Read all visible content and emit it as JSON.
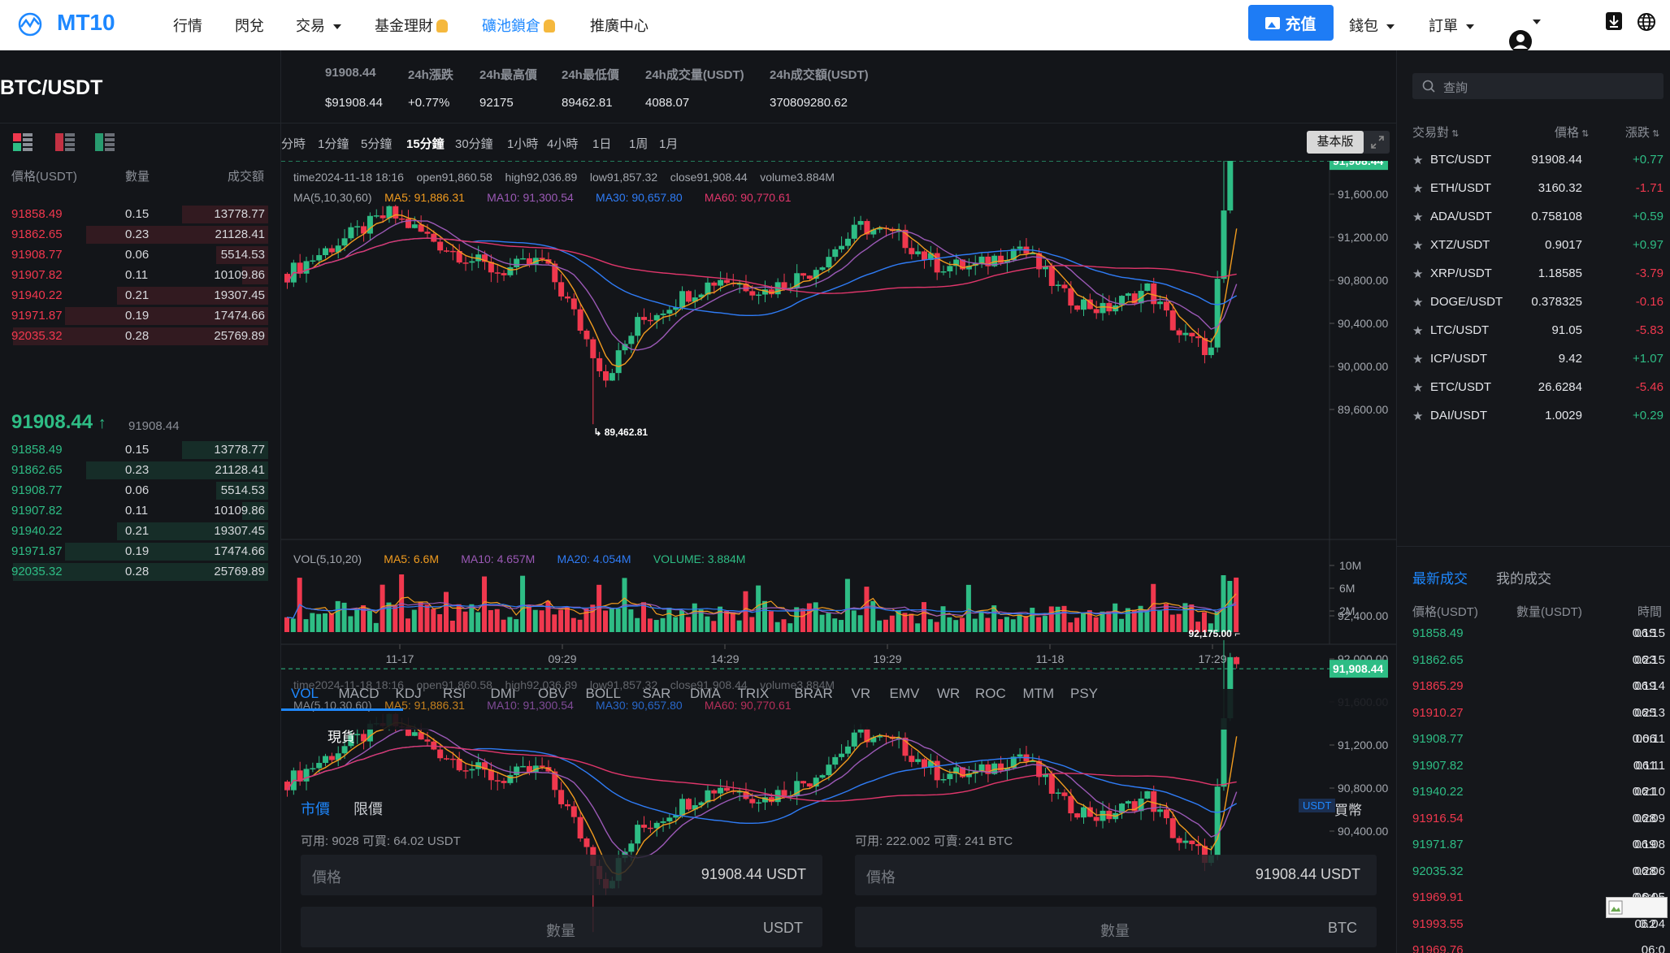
{
  "nav": {
    "logo": "MT10",
    "items": [
      "行情",
      "閃兌",
      "交易",
      "基金理財",
      "礦池鎖倉",
      "推廣中心"
    ],
    "recharge": "充值",
    "wallet": "錢包",
    "orders": "訂單"
  },
  "ticker": {
    "symbol": "BTC/USDT",
    "last_price": "91908.44",
    "last_price_usd": "$91908.44",
    "labels": [
      "24h漲跌",
      "24h最高價",
      "24h最低價",
      "24h成交量(USDT)",
      "24h成交額(USDT)"
    ],
    "values": [
      "+0.77%",
      "92175",
      "89462.81",
      "4088.07",
      "370809280.62"
    ]
  },
  "orderbook": {
    "headers": [
      "價格(USDT)",
      "數量",
      "成交額"
    ],
    "asks": [
      {
        "price": "91858.49",
        "qty": "0.15",
        "total": "13778.77",
        "depth": 0.33
      },
      {
        "price": "91862.65",
        "qty": "0.23",
        "total": "21128.41",
        "depth": 0.7
      },
      {
        "price": "91908.77",
        "qty": "0.06",
        "total": "5514.53",
        "depth": 0.2
      },
      {
        "price": "91907.82",
        "qty": "0.11",
        "total": "10109.86",
        "depth": 0.1
      },
      {
        "price": "91940.22",
        "qty": "0.21",
        "total": "19307.45",
        "depth": 0.58
      },
      {
        "price": "91971.87",
        "qty": "0.19",
        "total": "17474.66",
        "depth": 0.78
      },
      {
        "price": "92035.32",
        "qty": "0.28",
        "total": "25769.89",
        "depth": 0.98
      }
    ],
    "mid_price": "91908.44",
    "mid_sub": "91908.44",
    "bids": [
      {
        "price": "91858.49",
        "qty": "0.15",
        "total": "13778.77",
        "depth": 0.33
      },
      {
        "price": "91862.65",
        "qty": "0.23",
        "total": "21128.41",
        "depth": 0.7
      },
      {
        "price": "91908.77",
        "qty": "0.06",
        "total": "5514.53",
        "depth": 0.2
      },
      {
        "price": "91907.82",
        "qty": "0.11",
        "total": "10109.86",
        "depth": 0.1
      },
      {
        "price": "91940.22",
        "qty": "0.21",
        "total": "19307.45",
        "depth": 0.58
      },
      {
        "price": "91971.87",
        "qty": "0.19",
        "total": "17474.66",
        "depth": 0.78
      },
      {
        "price": "92035.32",
        "qty": "0.28",
        "total": "25769.89",
        "depth": 0.98
      }
    ]
  },
  "timeframes": [
    "分時",
    "1分鐘",
    "5分鐘",
    "15分鐘",
    "30分鐘",
    "1小時",
    "4小時",
    "1日",
    "1周",
    "1月"
  ],
  "active_timeframe": "15分鐘",
  "basic_version": "基本版",
  "chart": {
    "info_line": {
      "time": "time2024-11-18 18:16",
      "open": "open91,860.58",
      "high": "high92,036.89",
      "low": "low91,857.32",
      "close": "close91,908.44",
      "volume": "volume3.884M"
    },
    "ma_line": {
      "label": "MA(5,10,30,60)",
      "ma5": "MA5: 91,886.31",
      "ma10": "MA10: 91,300.54",
      "ma30": "MA30: 90,657.80",
      "ma60": "MA60: 90,770.61"
    },
    "y_ticks": [
      "92,400.00",
      "92,000.00",
      "91,600.00",
      "91,200.00",
      "90,800.00",
      "90,400.00",
      "90,000.00",
      "89,600.00"
    ],
    "current_price_label": "91,908.44",
    "high_marker": "92,175.00",
    "low_marker": "89,462.81",
    "vol_line": {
      "label": "VOL(5,10,20)",
      "ma5": "MA5: 6.6M",
      "ma10": "MA10: 4.657M",
      "ma20": "MA20: 4.054M",
      "volume": "VOLUME: 3.884M"
    },
    "vol_ticks": [
      "10M",
      "6M",
      "2M"
    ],
    "x_ticks": [
      "11-17",
      "09:29",
      "14:29",
      "19:29",
      "11-18",
      "17:29"
    ],
    "colors": {
      "up": "#2ebd85",
      "down": "#f0384e",
      "ma5": "#f29c1f",
      "ma10": "#9b59b6",
      "ma30": "#2f7cf6",
      "ma60": "#e0366b"
    }
  },
  "indicators": [
    "VOL",
    "MACD",
    "KDJ",
    "RSI",
    "DMI",
    "OBV",
    "BOLL",
    "SAR",
    "DMA",
    "TRIX",
    "BRAR",
    "VR",
    "EMV",
    "WR",
    "ROC",
    "MTM",
    "PSY"
  ],
  "trade_panel": {
    "tab": "現貨",
    "order_types": [
      "市價",
      "限價"
    ],
    "available_buy": "可用: 9028 可買: 64.02 USDT",
    "available_sell": "可用: 222.002 可賣: 241 BTC",
    "price_label": "價格",
    "buy_price_value": "91908.44 USDT",
    "sell_price_value": "91908.44 USDT",
    "amount_label": "數量",
    "buy_unit": "USDT",
    "sell_unit": "BTC",
    "unit_badge": "USDT",
    "buy_sell": "買幣"
  },
  "search": {
    "placeholder": "查詢"
  },
  "pairs": {
    "headers": [
      "交易對",
      "價格",
      "漲跌"
    ],
    "rows": [
      {
        "name": "BTC/USDT",
        "price": "91908.44",
        "change": "+0.77",
        "dir": "up"
      },
      {
        "name": "ETH/USDT",
        "price": "3160.32",
        "change": "-1.71",
        "dir": "down"
      },
      {
        "name": "ADA/USDT",
        "price": "0.758108",
        "change": "+0.59",
        "dir": "up"
      },
      {
        "name": "XTZ/USDT",
        "price": "0.9017",
        "change": "+0.97",
        "dir": "up"
      },
      {
        "name": "XRP/USDT",
        "price": "1.18585",
        "change": "-3.79",
        "dir": "down"
      },
      {
        "name": "DOGE/USDT",
        "price": "0.378325",
        "change": "-0.16",
        "dir": "down"
      },
      {
        "name": "LTC/USDT",
        "price": "91.05",
        "change": "-5.83",
        "dir": "down"
      },
      {
        "name": "ICP/USDT",
        "price": "9.42",
        "change": "+1.07",
        "dir": "up"
      },
      {
        "name": "ETC/USDT",
        "price": "26.6284",
        "change": "-5.46",
        "dir": "down"
      },
      {
        "name": "DAI/USDT",
        "price": "1.0029",
        "change": "+0.29",
        "dir": "up"
      }
    ]
  },
  "trades": {
    "tabs": [
      "最新成交",
      "我的成交"
    ],
    "headers": [
      "價格(USDT)",
      "數量(USDT)",
      "時間"
    ],
    "rows": [
      {
        "price": "91858.49",
        "qty": "0.15",
        "time": "06:15",
        "dir": "up"
      },
      {
        "price": "91862.65",
        "qty": "0.23",
        "time": "06:15",
        "dir": "up"
      },
      {
        "price": "91865.29",
        "qty": "0.19",
        "time": "06:14",
        "dir": "down"
      },
      {
        "price": "91910.27",
        "qty": "0.25",
        "time": "06:13",
        "dir": "down"
      },
      {
        "price": "91908.77",
        "qty": "0.06",
        "time": "06:11",
        "dir": "up"
      },
      {
        "price": "91907.82",
        "qty": "0.11",
        "time": "06:11",
        "dir": "up"
      },
      {
        "price": "91940.22",
        "qty": "0.21",
        "time": "06:10",
        "dir": "up"
      },
      {
        "price": "91916.54",
        "qty": "0.28",
        "time": "06:09",
        "dir": "down"
      },
      {
        "price": "91971.87",
        "qty": "0.19",
        "time": "06:08",
        "dir": "up"
      },
      {
        "price": "92035.32",
        "qty": "0.28",
        "time": "06:06",
        "dir": "up"
      },
      {
        "price": "91969.91",
        "qty": "0.04",
        "time": "06:05",
        "dir": "down"
      },
      {
        "price": "91993.55",
        "qty": "0.2",
        "time": "06:04",
        "dir": "down"
      },
      {
        "price": "91969.76",
        "qty": "",
        "time": "06:0",
        "dir": "down"
      }
    ]
  }
}
